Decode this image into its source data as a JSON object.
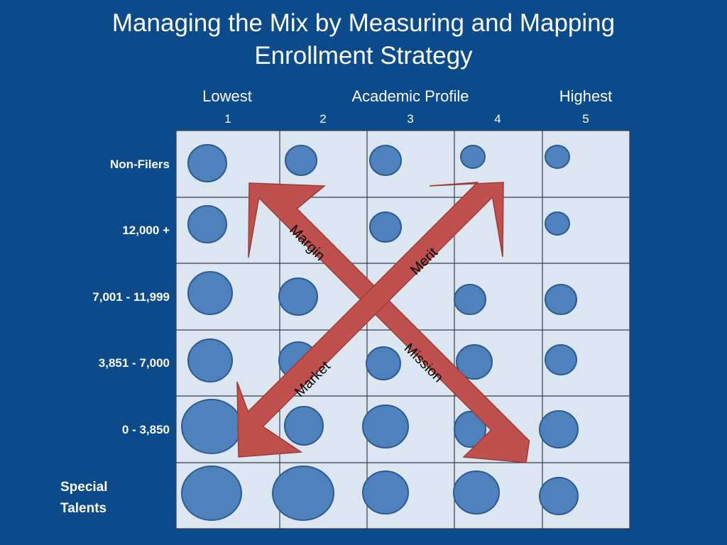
{
  "title": {
    "line1": "Managing the Mix by Measuring and Mapping",
    "line2": "Enrollment Strategy"
  },
  "axis": {
    "low_label": "Lowest",
    "center_label": "Academic Profile",
    "high_label": "Highest",
    "columns": [
      "1",
      "2",
      "3",
      "4",
      "5"
    ]
  },
  "rows": {
    "r0": "Non-Filers",
    "r1": "12,000 +",
    "r2": "7,001 - 11,999",
    "r3": "3,851 - 7,000",
    "r4": "0 - 3,850",
    "r5_line1": "Special",
    "r5_line2": "Talents"
  },
  "arrows": {
    "margin": "Margin",
    "merit": "Merit",
    "market": "Market",
    "mission": "Mission"
  },
  "colors": {
    "background": "#0b4a8b",
    "cell_fill": "#dce6f1",
    "bubble": "#4f81bd",
    "arrow": "#c0504d"
  }
}
